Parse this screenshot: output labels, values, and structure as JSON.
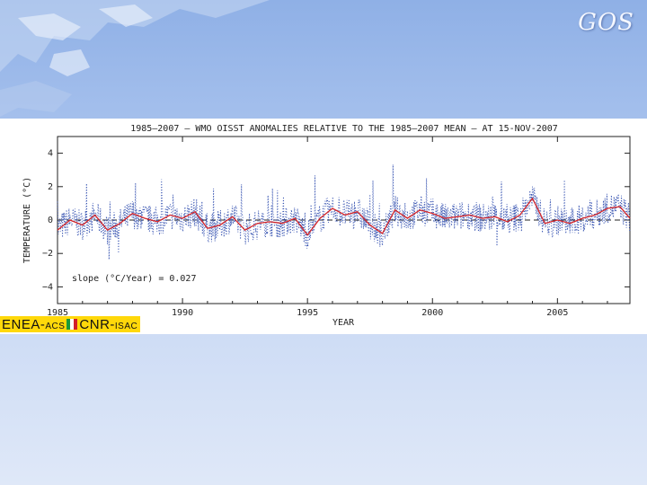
{
  "slide": {
    "logo_text": "GOS",
    "footer": {
      "enea_main": "ENEA-",
      "enea_sub": "ACS",
      "cnr_main": "CNR-",
      "cnr_sub": "ISAC"
    },
    "colors": {
      "background_top": "#8fb0e6",
      "background_bottom": "#dfe8f8",
      "footer_band": "#ffd80a",
      "flag": [
        "#1a9a3a",
        "#ffffff",
        "#d11f2a"
      ]
    }
  },
  "chart_data": {
    "type": "line",
    "title": "1985–2007 – WMO OISST ANOMALIES RELATIVE TO THE 1985–2007 MEAN – AT 15-NOV-2007",
    "xlabel": "YEAR",
    "ylabel": "TEMPERATURE (°C)",
    "xlim": [
      1985,
      2007.9
    ],
    "ylim": [
      -5,
      5
    ],
    "x_ticks": [
      1985,
      1990,
      1995,
      2000,
      2005
    ],
    "y_ticks": [
      -4,
      -2,
      0,
      2,
      4
    ],
    "annotation": "slope (°C/Year) = 0.027",
    "reference_line": {
      "y": 0,
      "style": "dashed"
    },
    "grid": false,
    "series": [
      {
        "style": "dotted",
        "color": "#1f3fa8"
      },
      {
        "style": "solid",
        "color": "#d4262a",
        "x": [
          1985.0,
          1985.5,
          1986.0,
          1986.5,
          1987.0,
          1987.5,
          1988.0,
          1988.5,
          1989.0,
          1989.5,
          1990.0,
          1990.5,
          1991.0,
          1991.5,
          1992.0,
          1992.5,
          1993.0,
          1993.5,
          1994.0,
          1994.5,
          1995.0,
          1995.5,
          1996.0,
          1996.5,
          1997.0,
          1997.5,
          1998.0,
          1998.5,
          1999.0,
          1999.5,
          2000.0,
          2000.5,
          2001.0,
          2001.5,
          2002.0,
          2002.5,
          2003.0,
          2003.5,
          2004.0,
          2004.5,
          2005.0,
          2005.5,
          2006.0,
          2006.5,
          2007.0,
          2007.5,
          2007.9
        ],
        "y": [
          -0.6,
          0.0,
          -0.3,
          0.3,
          -0.6,
          -0.2,
          0.4,
          0.1,
          -0.1,
          0.3,
          0.1,
          0.5,
          -0.5,
          -0.3,
          0.2,
          -0.6,
          -0.2,
          -0.1,
          -0.2,
          0.1,
          -0.9,
          0.1,
          0.7,
          0.3,
          0.5,
          -0.3,
          -0.8,
          0.6,
          0.1,
          0.6,
          0.4,
          0.1,
          0.2,
          0.3,
          0.1,
          0.2,
          -0.1,
          0.3,
          1.3,
          -0.2,
          0.0,
          -0.2,
          0.1,
          0.3,
          0.7,
          0.8,
          0.1
        ]
      }
    ]
  }
}
